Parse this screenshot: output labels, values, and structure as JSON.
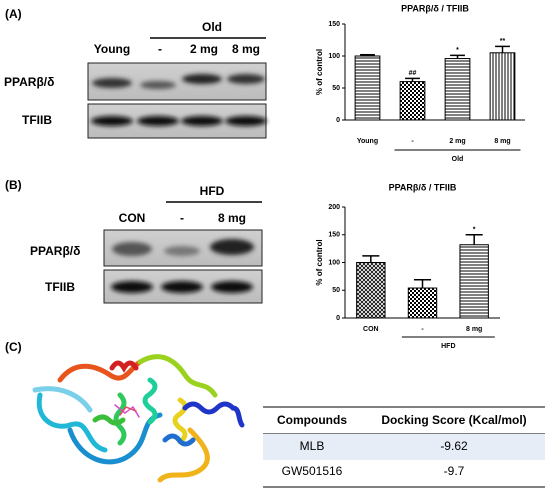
{
  "panels": {
    "a": "(A)",
    "b": "(B)",
    "c": "(C)"
  },
  "blot_a": {
    "group": "Old",
    "lanes": [
      "Young",
      "-",
      "2 mg",
      "8 mg"
    ],
    "rows": [
      "PPARβ/δ",
      "TFIIB"
    ]
  },
  "blot_b": {
    "group": "HFD",
    "lanes": [
      "CON",
      "-",
      "8 mg"
    ],
    "rows": [
      "PPARβ/δ",
      "TFIIB"
    ]
  },
  "chart_data": [
    {
      "type": "bar",
      "title": "PPARβ/δ / TFIIB",
      "y_label": "% of control",
      "categories": [
        "Young",
        "-",
        "2 mg",
        "8 mg"
      ],
      "values": [
        100,
        60,
        96,
        105
      ],
      "errors": [
        2,
        5,
        5,
        10
      ],
      "markers": [
        null,
        "##",
        "*",
        "**"
      ],
      "group_label": "Old",
      "patterns": [
        "hlines",
        "checker",
        "hlines",
        "vlines"
      ],
      "color": "#000000",
      "ylim": [
        0,
        150
      ],
      "yticks": [
        0,
        50,
        100,
        150
      ]
    },
    {
      "type": "bar",
      "title": "PPARβ/δ / TFIIB",
      "y_label": "% of control",
      "categories": [
        "CON",
        "-",
        "8 mg"
      ],
      "values": [
        100,
        54,
        132
      ],
      "errors": [
        12,
        15,
        18
      ],
      "markers": [
        null,
        null,
        "*"
      ],
      "group_label": "HFD",
      "patterns": [
        "crosshatch",
        "checker",
        "hlines"
      ],
      "color": "#000000",
      "ylim": [
        0,
        200
      ],
      "yticks": [
        0,
        50,
        100,
        150,
        200
      ]
    }
  ],
  "table": {
    "header": [
      "Compounds",
      "Docking Score (Kcal/mol)"
    ],
    "rows": [
      [
        "MLB",
        "-9.62"
      ],
      [
        "GW501516",
        "-9.7"
      ]
    ]
  }
}
